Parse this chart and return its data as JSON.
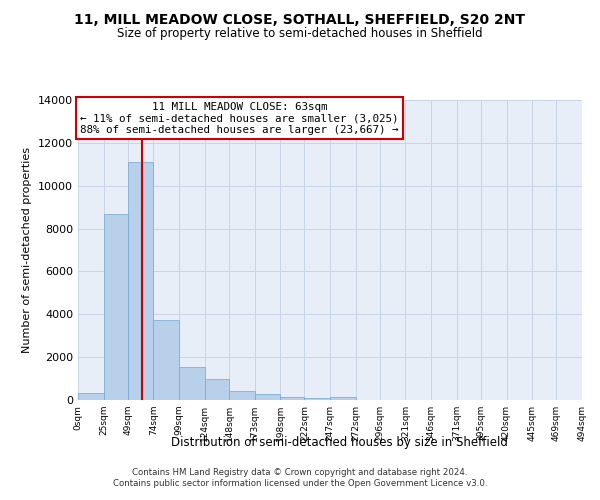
{
  "title": "11, MILL MEADOW CLOSE, SOTHALL, SHEFFIELD, S20 2NT",
  "subtitle": "Size of property relative to semi-detached houses in Sheffield",
  "xlabel": "Distribution of semi-detached houses by size in Sheffield",
  "ylabel": "Number of semi-detached properties",
  "footer_line1": "Contains HM Land Registry data © Crown copyright and database right 2024.",
  "footer_line2": "Contains public sector information licensed under the Open Government Licence v3.0.",
  "annotation_line1": "11 MILL MEADOW CLOSE: 63sqm",
  "annotation_line2": "← 11% of semi-detached houses are smaller (3,025)",
  "annotation_line3": "88% of semi-detached houses are larger (23,667) →",
  "property_size_sqm": 63,
  "bin_edges": [
    0,
    25,
    49,
    74,
    99,
    124,
    148,
    173,
    198,
    222,
    247,
    272,
    296,
    321,
    346,
    371,
    395,
    420,
    445,
    469,
    494
  ],
  "bin_labels": [
    "0sqm",
    "25sqm",
    "49sqm",
    "74sqm",
    "99sqm",
    "124sqm",
    "148sqm",
    "173sqm",
    "198sqm",
    "222sqm",
    "247sqm",
    "272sqm",
    "296sqm",
    "321sqm",
    "346sqm",
    "371sqm",
    "395sqm",
    "420sqm",
    "445sqm",
    "469sqm",
    "494sqm"
  ],
  "counts": [
    350,
    8700,
    11100,
    3750,
    1550,
    1000,
    400,
    280,
    160,
    80,
    120,
    0,
    0,
    0,
    0,
    0,
    0,
    0,
    0,
    0
  ],
  "bar_color": "#b8d0ea",
  "bar_edge_color": "#6fa8d4",
  "vline_color": "#cc0000",
  "grid_color": "#c8d4e8",
  "background_color": "#e8eef8",
  "ylim": [
    0,
    14000
  ],
  "yticks": [
    0,
    2000,
    4000,
    6000,
    8000,
    10000,
    12000,
    14000
  ]
}
